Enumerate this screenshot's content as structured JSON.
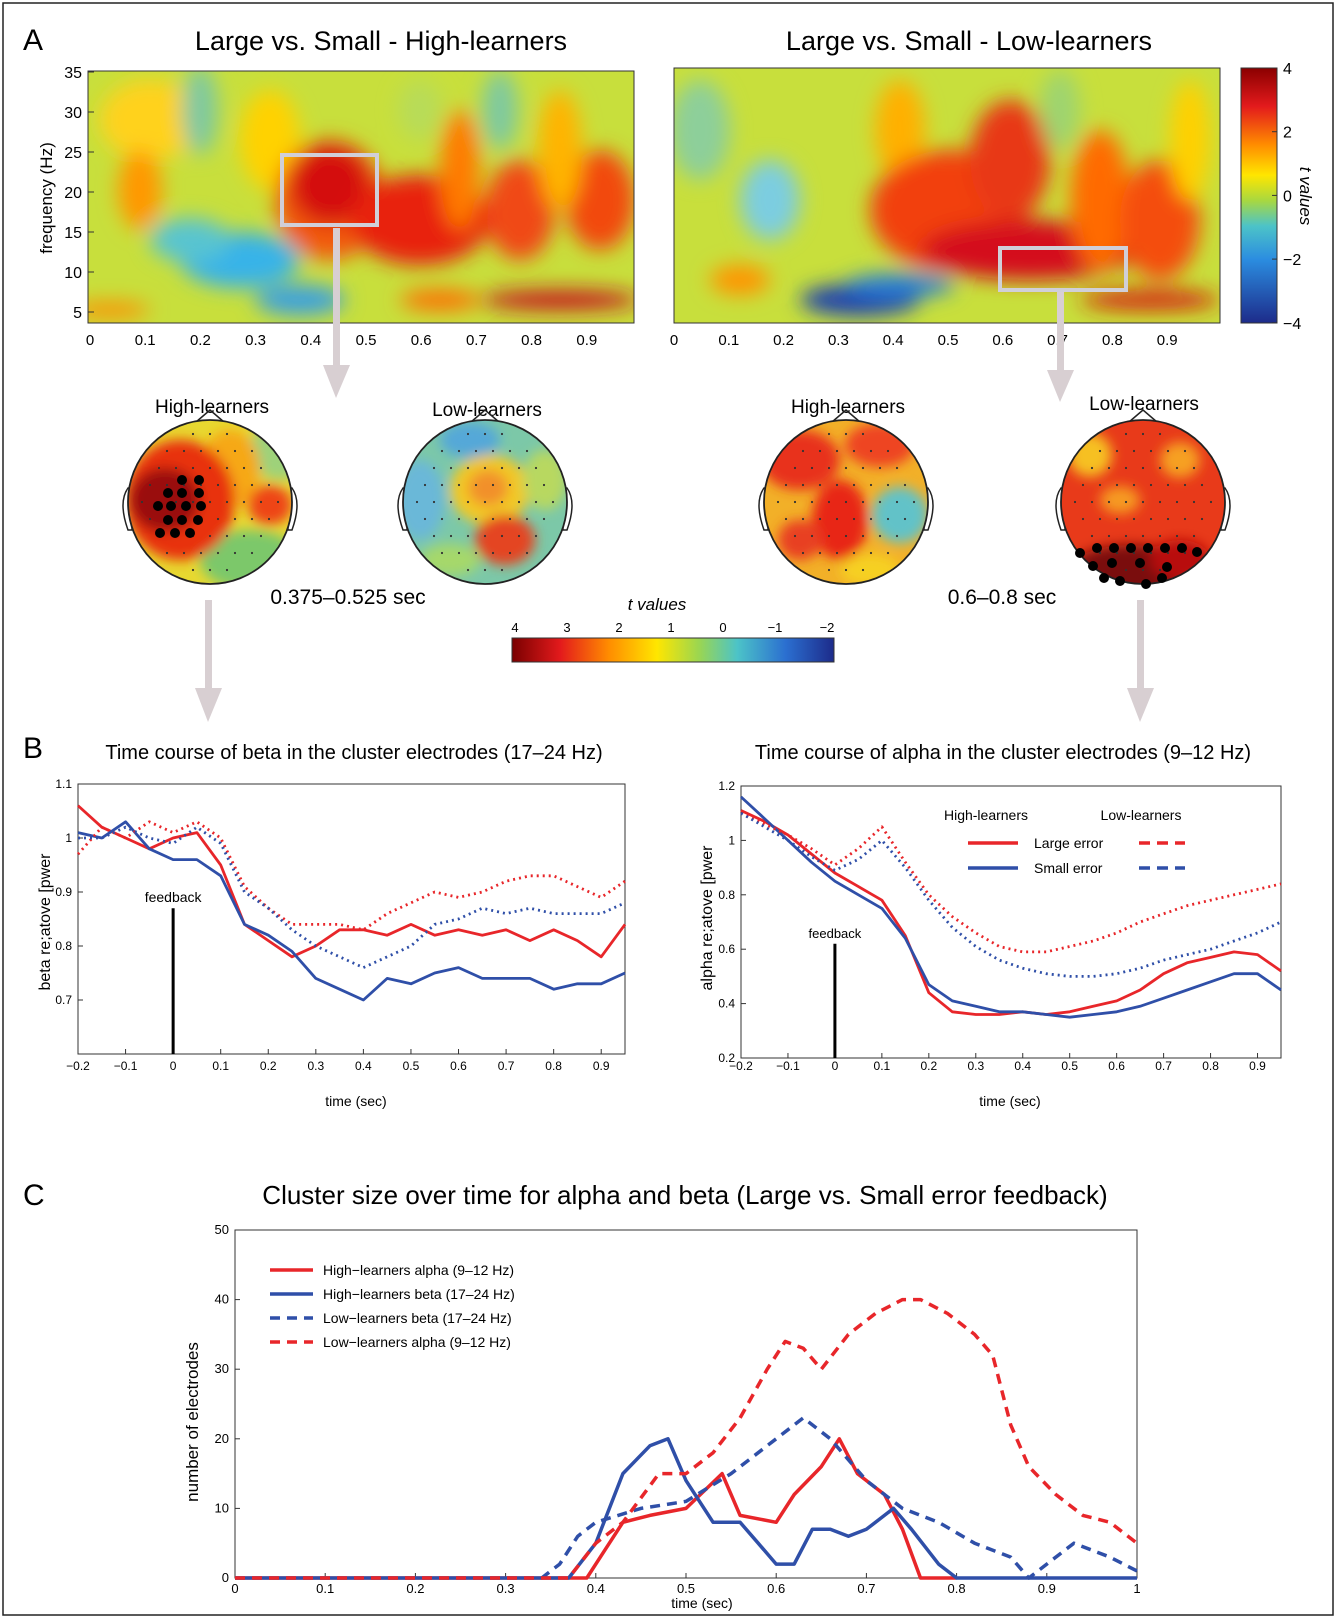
{
  "panel_a": {
    "label": "A",
    "heatmaps": [
      {
        "title": "Large vs. Small - High-learners",
        "ylabel": "frequency (Hz)",
        "x_ticks": [
          "0",
          "0.1",
          "0.2",
          "0.3",
          "0.4",
          "0.5",
          "0.6",
          "0.7",
          "0.8",
          "0.9"
        ],
        "y_ticks": [
          "5",
          "10",
          "15",
          "20",
          "25",
          "30",
          "35"
        ]
      },
      {
        "title": "Large vs. Small - Low-learners",
        "x_ticks": [
          "0",
          "0.1",
          "0.2",
          "0.3",
          "0.4",
          "0.5",
          "0.6",
          "0.7",
          "0.8",
          "0.9"
        ]
      }
    ],
    "colorbar": {
      "label": "t values",
      "ticks": [
        "4",
        "2",
        "0",
        "−2",
        "−4"
      ]
    },
    "topos": [
      {
        "title": "High-learners"
      },
      {
        "title": "Low-learners"
      },
      {
        "title": "High-learners"
      },
      {
        "title": "Low-learners"
      }
    ],
    "windows": [
      "0.375–0.525 sec",
      "0.6–0.8 sec"
    ],
    "horiz_colorbar": {
      "label": "t values",
      "ticks": [
        "4",
        "3",
        "2",
        "1",
        "0",
        "−1",
        "−2"
      ]
    }
  },
  "panel_b": {
    "label": "B",
    "left": {
      "title": "Time course of beta in the cluster electrodes (17–24 Hz)",
      "ylabel": "beta re;atove [pwer",
      "xlabel": "time (sec)",
      "marker": "feedback"
    },
    "right": {
      "title": "Time course of alpha in the cluster electrodes (9–12 Hz)",
      "ylabel": "alpha re;atove [pwer",
      "xlabel": "time (sec)",
      "marker": "feedback"
    },
    "legend": {
      "group1": "High-learners",
      "group2": "Low-learners",
      "row1": "Large error",
      "row2": "Small error"
    }
  },
  "panel_c": {
    "label": "C",
    "title": "Cluster size over time for alpha and beta (Large vs. Small error feedback)",
    "ylabel": "number of electrodes",
    "xlabel": "time (sec)",
    "legend": [
      "High−learners alpha (9–12 Hz)",
      "High−learners beta (17–24 Hz)",
      "Low−learners beta (17–24 Hz)",
      "Low−learners alpha (9–12 Hz)"
    ]
  },
  "colors": {
    "red": "#e8262a",
    "blue": "#2f4fa8",
    "arrow": "#d8cfd2"
  },
  "chart_data": [
    {
      "type": "line",
      "title": "Time course of beta in the cluster electrodes (17–24 Hz)",
      "xlabel": "time (sec)",
      "ylabel": "beta re;atove [pwer",
      "xlim": [
        -0.2,
        0.95
      ],
      "ylim": [
        0.6,
        1.1
      ],
      "x_ticks": [
        -0.2,
        -0.1,
        0,
        0.1,
        0.2,
        0.3,
        0.4,
        0.5,
        0.6,
        0.7,
        0.8,
        0.9
      ],
      "y_ticks": [
        0.7,
        0.8,
        0.9,
        1,
        1.1
      ],
      "x": [
        -0.2,
        -0.15,
        -0.1,
        -0.05,
        0,
        0.05,
        0.1,
        0.15,
        0.2,
        0.25,
        0.3,
        0.35,
        0.4,
        0.45,
        0.5,
        0.55,
        0.6,
        0.65,
        0.7,
        0.75,
        0.8,
        0.85,
        0.9,
        0.95
      ],
      "series": [
        {
          "name": "High-learners Large error",
          "style": "solid",
          "color": "red",
          "values": [
            1.06,
            1.02,
            1.0,
            0.98,
            1.0,
            1.01,
            0.95,
            0.84,
            0.81,
            0.78,
            0.8,
            0.83,
            0.83,
            0.82,
            0.84,
            0.82,
            0.83,
            0.82,
            0.83,
            0.81,
            0.83,
            0.81,
            0.78,
            0.84
          ]
        },
        {
          "name": "High-learners Small error",
          "style": "solid",
          "color": "blue",
          "values": [
            1.01,
            1.0,
            1.03,
            0.98,
            0.96,
            0.96,
            0.93,
            0.84,
            0.82,
            0.79,
            0.74,
            0.72,
            0.7,
            0.74,
            0.73,
            0.75,
            0.76,
            0.74,
            0.74,
            0.74,
            0.72,
            0.73,
            0.73,
            0.75
          ]
        },
        {
          "name": "Low-learners Large error",
          "style": "dashed",
          "color": "red",
          "values": [
            0.97,
            1.02,
            1.0,
            1.03,
            1.01,
            1.03,
            1.0,
            0.91,
            0.87,
            0.84,
            0.84,
            0.84,
            0.83,
            0.86,
            0.88,
            0.9,
            0.89,
            0.9,
            0.92,
            0.93,
            0.93,
            0.91,
            0.89,
            0.92
          ]
        },
        {
          "name": "Low-learners Small error",
          "style": "dashed",
          "color": "blue",
          "values": [
            1.0,
            1.0,
            1.02,
            1.0,
            0.99,
            1.02,
            0.99,
            0.9,
            0.87,
            0.83,
            0.8,
            0.78,
            0.76,
            0.78,
            0.8,
            0.84,
            0.85,
            0.87,
            0.86,
            0.87,
            0.86,
            0.86,
            0.86,
            0.88
          ]
        }
      ]
    },
    {
      "type": "line",
      "title": "Time course of alpha in the cluster electrodes (9–12 Hz)",
      "xlabel": "time (sec)",
      "ylabel": "alpha re;atove [pwer",
      "xlim": [
        -0.2,
        0.95
      ],
      "ylim": [
        0.2,
        1.2
      ],
      "x_ticks": [
        -0.2,
        -0.1,
        0,
        0.1,
        0.2,
        0.3,
        0.4,
        0.5,
        0.6,
        0.7,
        0.8,
        0.9
      ],
      "y_ticks": [
        0.2,
        0.4,
        0.6,
        0.8,
        1,
        1.2
      ],
      "x": [
        -0.2,
        -0.15,
        -0.1,
        -0.05,
        0,
        0.05,
        0.1,
        0.15,
        0.2,
        0.25,
        0.3,
        0.35,
        0.4,
        0.45,
        0.5,
        0.55,
        0.6,
        0.65,
        0.7,
        0.75,
        0.8,
        0.85,
        0.9,
        0.95
      ],
      "series": [
        {
          "name": "High-learners Large error",
          "style": "solid",
          "color": "red",
          "values": [
            1.11,
            1.07,
            1.02,
            0.95,
            0.88,
            0.83,
            0.78,
            0.65,
            0.44,
            0.37,
            0.36,
            0.36,
            0.37,
            0.36,
            0.37,
            0.39,
            0.41,
            0.45,
            0.51,
            0.55,
            0.57,
            0.59,
            0.58,
            0.52
          ]
        },
        {
          "name": "High-learners Small error",
          "style": "solid",
          "color": "blue",
          "values": [
            1.16,
            1.08,
            1.0,
            0.92,
            0.85,
            0.8,
            0.75,
            0.64,
            0.47,
            0.41,
            0.39,
            0.37,
            0.37,
            0.36,
            0.35,
            0.36,
            0.37,
            0.39,
            0.42,
            0.45,
            0.48,
            0.51,
            0.51,
            0.45
          ]
        },
        {
          "name": "Low-learners Large error",
          "style": "dashed",
          "color": "red",
          "values": [
            1.1,
            1.06,
            1.02,
            0.97,
            0.91,
            0.97,
            1.05,
            0.92,
            0.8,
            0.72,
            0.66,
            0.61,
            0.59,
            0.59,
            0.61,
            0.63,
            0.66,
            0.7,
            0.73,
            0.76,
            0.78,
            0.8,
            0.82,
            0.84
          ]
        },
        {
          "name": "Low-learners Small error",
          "style": "dashed",
          "color": "blue",
          "values": [
            1.1,
            1.05,
            1.0,
            0.94,
            0.89,
            0.93,
            1.0,
            0.9,
            0.78,
            0.68,
            0.61,
            0.56,
            0.53,
            0.51,
            0.5,
            0.5,
            0.51,
            0.53,
            0.56,
            0.58,
            0.6,
            0.63,
            0.66,
            0.7
          ]
        }
      ]
    },
    {
      "type": "line",
      "title": "Cluster size over time for alpha and beta (Large vs. Small error feedback)",
      "xlabel": "time (sec)",
      "ylabel": "number of electrodes",
      "xlim": [
        0,
        1
      ],
      "ylim": [
        0,
        50
      ],
      "x_ticks": [
        0,
        0.1,
        0.2,
        0.3,
        0.4,
        0.5,
        0.6,
        0.7,
        0.8,
        0.9,
        1
      ],
      "y_ticks": [
        0,
        10,
        20,
        30,
        40,
        50
      ],
      "series": [
        {
          "name": "High−learners alpha (9–12 Hz)",
          "style": "solid",
          "color": "red",
          "points": [
            [
              0,
              0
            ],
            [
              0.39,
              0
            ],
            [
              0.41,
              4
            ],
            [
              0.43,
              8
            ],
            [
              0.46,
              9
            ],
            [
              0.5,
              10
            ],
            [
              0.54,
              15
            ],
            [
              0.56,
              9
            ],
            [
              0.6,
              8
            ],
            [
              0.62,
              12
            ],
            [
              0.65,
              16
            ],
            [
              0.67,
              20
            ],
            [
              0.69,
              15
            ],
            [
              0.72,
              12
            ],
            [
              0.74,
              7
            ],
            [
              0.76,
              0
            ],
            [
              0.8,
              0
            ]
          ]
        },
        {
          "name": "High−learners beta (17–24 Hz)",
          "style": "solid",
          "color": "blue",
          "points": [
            [
              0,
              0
            ],
            [
              0.37,
              0
            ],
            [
              0.4,
              5
            ],
            [
              0.43,
              15
            ],
            [
              0.46,
              19
            ],
            [
              0.48,
              20
            ],
            [
              0.5,
              14
            ],
            [
              0.53,
              8
            ],
            [
              0.56,
              8
            ],
            [
              0.58,
              5
            ],
            [
              0.6,
              2
            ],
            [
              0.62,
              2
            ],
            [
              0.64,
              7
            ],
            [
              0.66,
              7
            ],
            [
              0.68,
              6
            ],
            [
              0.7,
              7
            ],
            [
              0.73,
              10
            ],
            [
              0.75,
              7
            ],
            [
              0.78,
              2
            ],
            [
              0.8,
              0
            ],
            [
              1,
              0
            ]
          ]
        },
        {
          "name": "Low−learners beta (17–24 Hz)",
          "style": "dashed",
          "color": "blue",
          "points": [
            [
              0,
              0
            ],
            [
              0.34,
              0
            ],
            [
              0.36,
              2
            ],
            [
              0.38,
              6
            ],
            [
              0.4,
              8
            ],
            [
              0.45,
              10
            ],
            [
              0.5,
              11
            ],
            [
              0.55,
              15
            ],
            [
              0.6,
              20
            ],
            [
              0.63,
              23
            ],
            [
              0.66,
              20
            ],
            [
              0.7,
              14
            ],
            [
              0.74,
              10
            ],
            [
              0.78,
              8
            ],
            [
              0.82,
              5
            ],
            [
              0.86,
              3
            ],
            [
              0.88,
              0
            ],
            [
              0.9,
              2
            ],
            [
              0.93,
              5
            ],
            [
              0.97,
              3
            ],
            [
              1,
              1
            ]
          ]
        },
        {
          "name": "Low−learners alpha (9–12 Hz)",
          "style": "dashed",
          "color": "red",
          "points": [
            [
              0,
              0
            ],
            [
              0.37,
              0
            ],
            [
              0.4,
              5
            ],
            [
              0.43,
              8
            ],
            [
              0.47,
              15
            ],
            [
              0.5,
              15
            ],
            [
              0.53,
              18
            ],
            [
              0.56,
              23
            ],
            [
              0.59,
              30
            ],
            [
              0.61,
              34
            ],
            [
              0.63,
              33
            ],
            [
              0.65,
              30
            ],
            [
              0.68,
              35
            ],
            [
              0.71,
              38
            ],
            [
              0.74,
              40
            ],
            [
              0.76,
              40
            ],
            [
              0.79,
              38
            ],
            [
              0.82,
              35
            ],
            [
              0.84,
              32
            ],
            [
              0.86,
              22
            ],
            [
              0.88,
              16
            ],
            [
              0.91,
              12
            ],
            [
              0.94,
              9
            ],
            [
              0.97,
              8
            ],
            [
              1,
              5
            ]
          ]
        }
      ]
    }
  ]
}
